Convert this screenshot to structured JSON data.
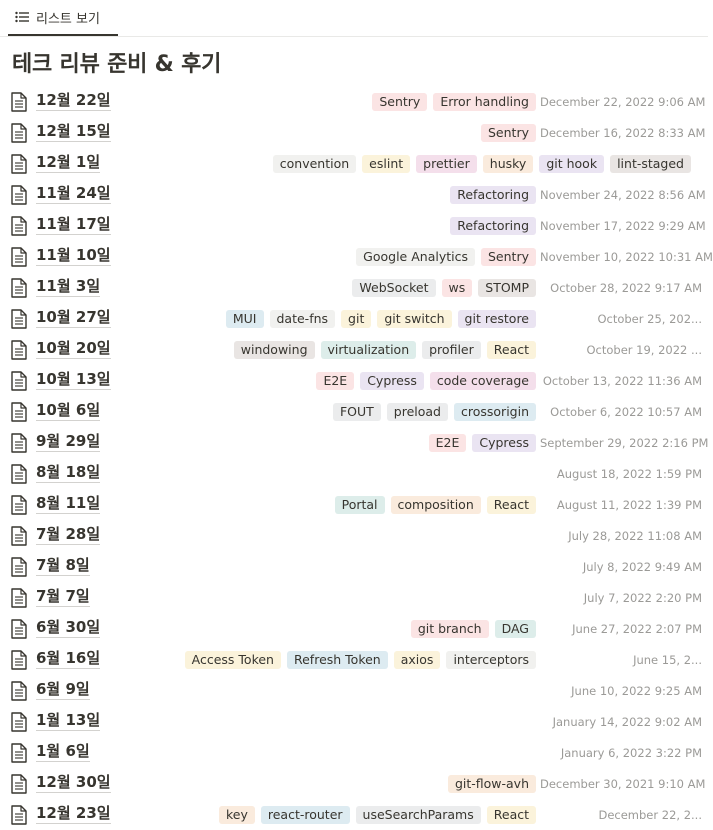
{
  "tab": {
    "label": "리스트 보기",
    "icon": "list-icon"
  },
  "page_title": "테크 리뷰 준비 & 후기",
  "tag_colors": {
    "gray": "#ebeced",
    "brown": "#e9e5e3",
    "orange": "#faebdd",
    "yellow": "#fbf3db",
    "green": "#ddedea",
    "blue": "#ddebf1",
    "purple": "#eae4f2",
    "pink": "#f4dfeb",
    "red": "#fbe4e4",
    "light": "#f1f1ef"
  },
  "rows": [
    {
      "name": "12월 22일",
      "tags": [
        {
          "label": "Sentry",
          "color": "red"
        },
        {
          "label": "Error handling",
          "color": "red"
        }
      ],
      "date": "December 22, 2022 9:06 AM"
    },
    {
      "name": "12월 15일",
      "tags": [
        {
          "label": "Sentry",
          "color": "red"
        }
      ],
      "date": "December 16, 2022 8:33 AM"
    },
    {
      "name": "12월 1일",
      "tags": [
        {
          "label": "convention",
          "color": "light"
        },
        {
          "label": "eslint",
          "color": "yellow"
        },
        {
          "label": "prettier",
          "color": "pink"
        },
        {
          "label": "husky",
          "color": "orange"
        },
        {
          "label": "git hook",
          "color": "purple"
        },
        {
          "label": "lint-staged",
          "color": "brown"
        }
      ],
      "date": ""
    },
    {
      "name": "11월 24일",
      "tags": [
        {
          "label": "Refactoring",
          "color": "purple"
        }
      ],
      "date": "November 24, 2022 8:56 AM"
    },
    {
      "name": "11월 17일",
      "tags": [
        {
          "label": "Refactoring",
          "color": "purple"
        }
      ],
      "date": "November 17, 2022 9:29 AM"
    },
    {
      "name": "11월 10일",
      "tags": [
        {
          "label": "Google Analytics",
          "color": "light"
        },
        {
          "label": "Sentry",
          "color": "red"
        }
      ],
      "date": "November 10, 2022 10:31 AM"
    },
    {
      "name": "11월 3일",
      "tags": [
        {
          "label": "WebSocket",
          "color": "gray"
        },
        {
          "label": "ws",
          "color": "red"
        },
        {
          "label": "STOMP",
          "color": "brown"
        }
      ],
      "date": "October 28, 2022 9:17 AM"
    },
    {
      "name": "10월 27일",
      "tags": [
        {
          "label": "MUI",
          "color": "blue"
        },
        {
          "label": "date-fns",
          "color": "light"
        },
        {
          "label": "git",
          "color": "yellow"
        },
        {
          "label": "git switch",
          "color": "yellow"
        },
        {
          "label": "git restore",
          "color": "purple"
        }
      ],
      "date": "October 25, 202..."
    },
    {
      "name": "10월 20일",
      "tags": [
        {
          "label": "windowing",
          "color": "brown"
        },
        {
          "label": "virtualization",
          "color": "green"
        },
        {
          "label": "profiler",
          "color": "gray"
        },
        {
          "label": "React",
          "color": "yellow"
        }
      ],
      "date": "October 19, 2022 ..."
    },
    {
      "name": "10월 13일",
      "tags": [
        {
          "label": "E2E",
          "color": "red"
        },
        {
          "label": "Cypress",
          "color": "purple"
        },
        {
          "label": "code coverage",
          "color": "pink"
        }
      ],
      "date": "October 13, 2022 11:36 AM"
    },
    {
      "name": "10월 6일",
      "tags": [
        {
          "label": "FOUT",
          "color": "gray"
        },
        {
          "label": "preload",
          "color": "gray"
        },
        {
          "label": "crossorigin",
          "color": "blue"
        }
      ],
      "date": "October 6, 2022 10:57 AM"
    },
    {
      "name": "9월 29일",
      "tags": [
        {
          "label": "E2E",
          "color": "red"
        },
        {
          "label": "Cypress",
          "color": "purple"
        }
      ],
      "date": "September 29, 2022 2:16 PM"
    },
    {
      "name": "8월 18일",
      "tags": [],
      "date": "August 18, 2022 1:59 PM"
    },
    {
      "name": "8월 11일",
      "tags": [
        {
          "label": "Portal",
          "color": "green"
        },
        {
          "label": "composition",
          "color": "orange"
        },
        {
          "label": "React",
          "color": "yellow"
        }
      ],
      "date": "August 11, 2022 1:39 PM"
    },
    {
      "name": "7월 28일",
      "tags": [],
      "date": "July 28, 2022 11:08 AM"
    },
    {
      "name": "7월 8일",
      "tags": [],
      "date": "July 8, 2022 9:49 AM"
    },
    {
      "name": "7월 7일",
      "tags": [],
      "date": "July 7, 2022 2:20 PM"
    },
    {
      "name": "6월 30일",
      "tags": [
        {
          "label": "git branch",
          "color": "red"
        },
        {
          "label": "DAG",
          "color": "green"
        }
      ],
      "date": "June 27, 2022 2:07 PM"
    },
    {
      "name": "6월 16일",
      "tags": [
        {
          "label": "Access Token",
          "color": "yellow"
        },
        {
          "label": "Refresh Token",
          "color": "blue"
        },
        {
          "label": "axios",
          "color": "yellow"
        },
        {
          "label": "interceptors",
          "color": "light"
        }
      ],
      "date": "June 15, 2..."
    },
    {
      "name": "6월 9일",
      "tags": [],
      "date": "June 10, 2022 9:25 AM"
    },
    {
      "name": "1월 13일",
      "tags": [],
      "date": "January 14, 2022 9:02 AM"
    },
    {
      "name": "1월 6일",
      "tags": [],
      "date": "January 6, 2022 3:22 PM"
    },
    {
      "name": "12월 30일",
      "tags": [
        {
          "label": "git-flow-avh",
          "color": "orange"
        }
      ],
      "date": "December 30, 2021 9:10 AM"
    },
    {
      "name": "12월 23일",
      "tags": [
        {
          "label": "key",
          "color": "orange"
        },
        {
          "label": "react-router",
          "color": "blue"
        },
        {
          "label": "useSearchParams",
          "color": "gray"
        },
        {
          "label": "React",
          "color": "yellow"
        }
      ],
      "date": "December 22, 2..."
    }
  ]
}
